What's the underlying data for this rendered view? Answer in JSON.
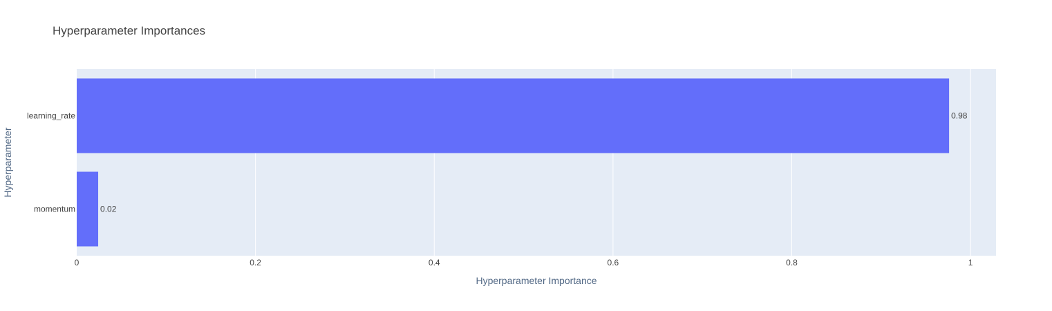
{
  "chart_data": {
    "type": "bar",
    "orientation": "horizontal",
    "title": "Hyperparameter Importances",
    "xlabel": "Hyperparameter Importance",
    "ylabel": "Hyperparameter",
    "categories": [
      "learning_rate",
      "momentum"
    ],
    "values": [
      0.976,
      0.024
    ],
    "value_labels": [
      "0.98",
      "0.02"
    ],
    "xlim": [
      0,
      1.0285
    ],
    "xticks": [
      0,
      0.2,
      0.4,
      0.6,
      0.8,
      1
    ],
    "xtick_labels": [
      "0",
      "0.2",
      "0.4",
      "0.6",
      "0.8",
      "1"
    ],
    "grid": true,
    "bar_color": "#636efa",
    "plot_bg_color": "#e5ecf6",
    "gridline_color": "#ffffff"
  }
}
